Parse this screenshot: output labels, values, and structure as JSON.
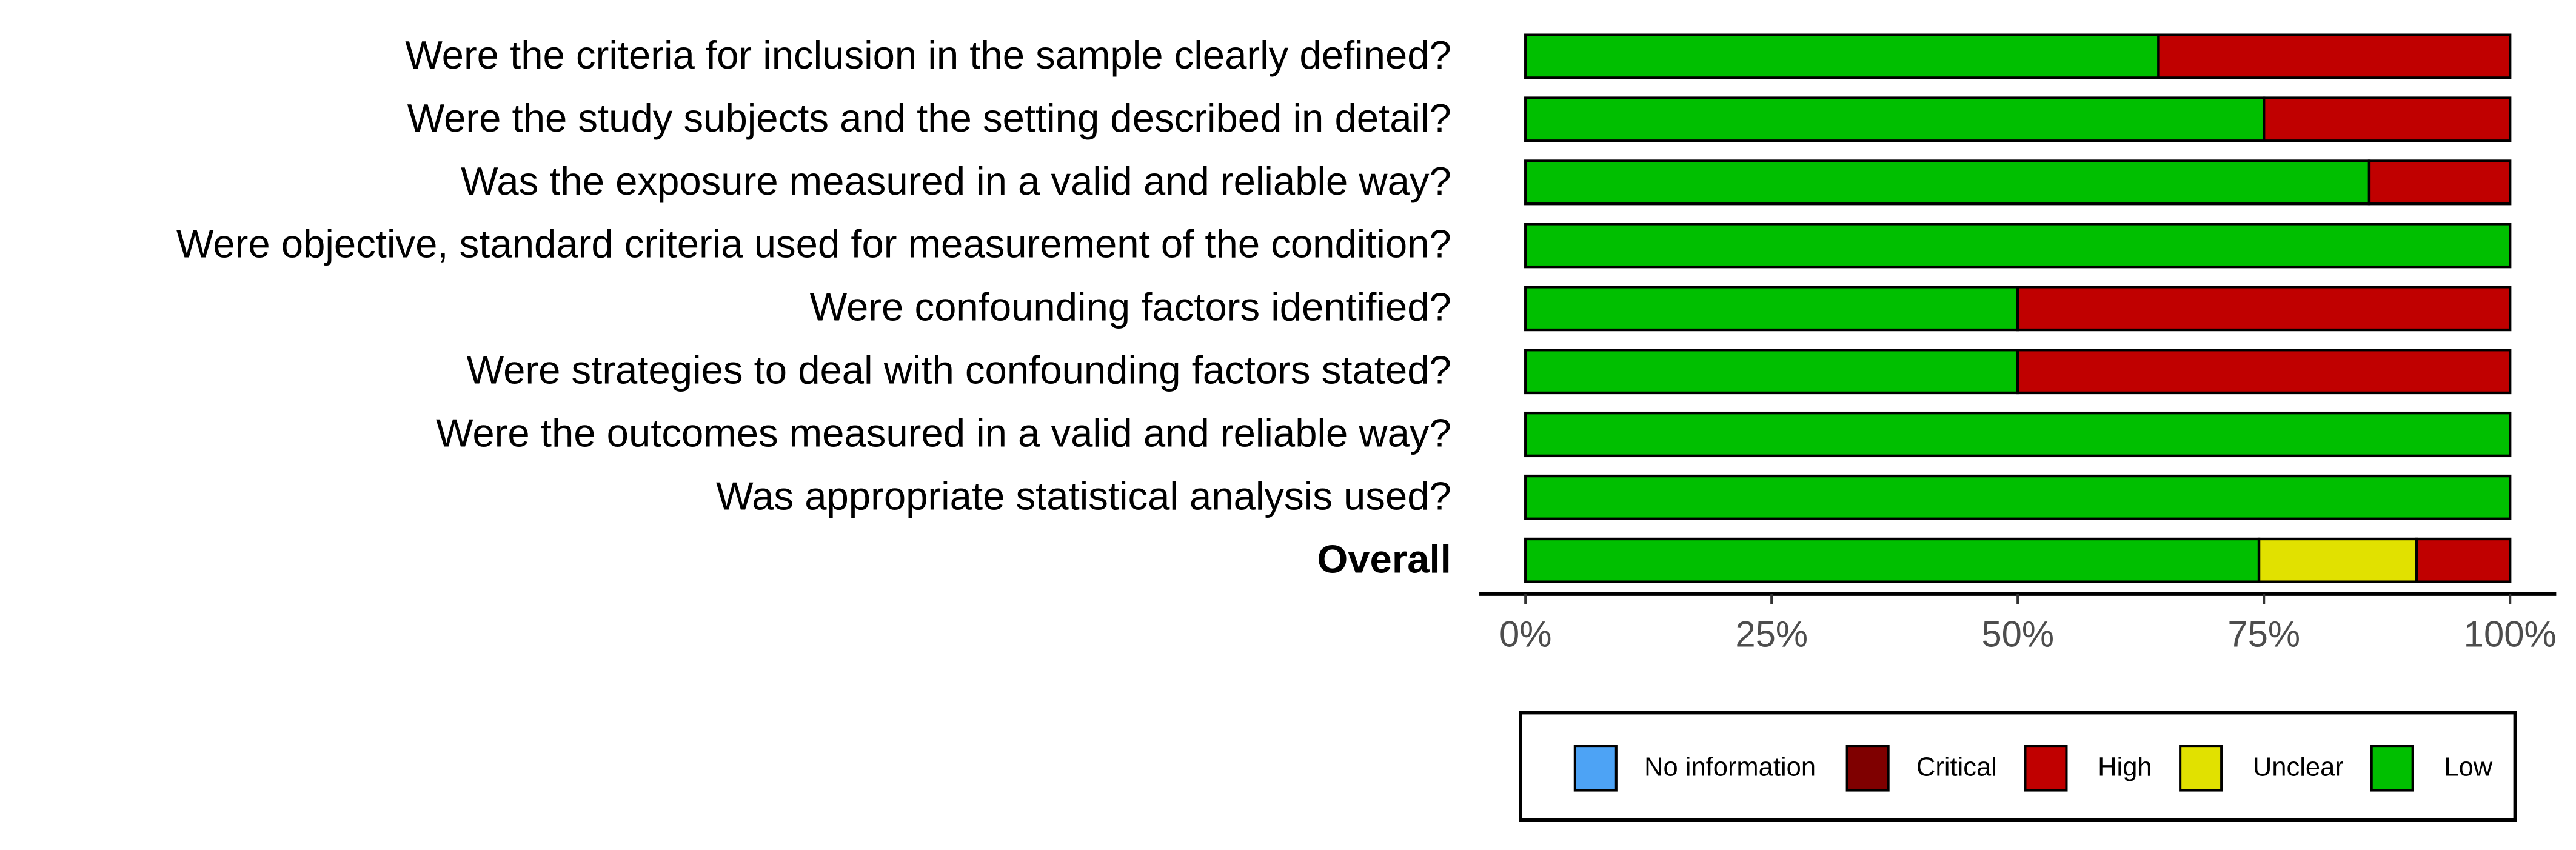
{
  "chart_data": {
    "type": "stacked-bar-horizontal",
    "categories": [
      "Were the criteria for inclusion in the sample clearly defined?",
      "Were the study subjects and the setting described in detail?",
      "Was the exposure measured in a valid and reliable way?",
      "Were objective, standard criteria used for measurement of the condition?",
      "Were confounding factors identified?",
      "Were strategies to deal with confounding factors stated?",
      "Were the outcomes measured in a valid and reliable way?",
      "Was appropriate statistical analysis used?",
      "Overall"
    ],
    "series": [
      {
        "name": "No information",
        "color": "#4da3f5",
        "values": [
          0,
          0,
          0,
          0,
          0,
          0,
          0,
          0,
          0
        ]
      },
      {
        "name": "Critical",
        "color": "#7f0000",
        "values": [
          0,
          0,
          0,
          0,
          0,
          0,
          0,
          0,
          0
        ]
      },
      {
        "name": "High",
        "color": "#c00000",
        "values": [
          35.7,
          25,
          14.3,
          0,
          50,
          50,
          0,
          0,
          9.5
        ]
      },
      {
        "name": "Unclear",
        "color": "#e1e100",
        "values": [
          0,
          0,
          0,
          0,
          0,
          0,
          0,
          0,
          16
        ]
      },
      {
        "name": "Low",
        "color": "#00bf00",
        "values": [
          64.3,
          75,
          85.7,
          100,
          50,
          50,
          100,
          100,
          74.5
        ]
      }
    ],
    "xlim": [
      0,
      100
    ],
    "xticks": [
      {
        "value": 0,
        "label": "0%"
      },
      {
        "value": 25,
        "label": "25%"
      },
      {
        "value": 50,
        "label": "50%"
      },
      {
        "value": 75,
        "label": "75%"
      },
      {
        "value": 100,
        "label": "100%"
      }
    ],
    "legend_position": "bottom"
  }
}
